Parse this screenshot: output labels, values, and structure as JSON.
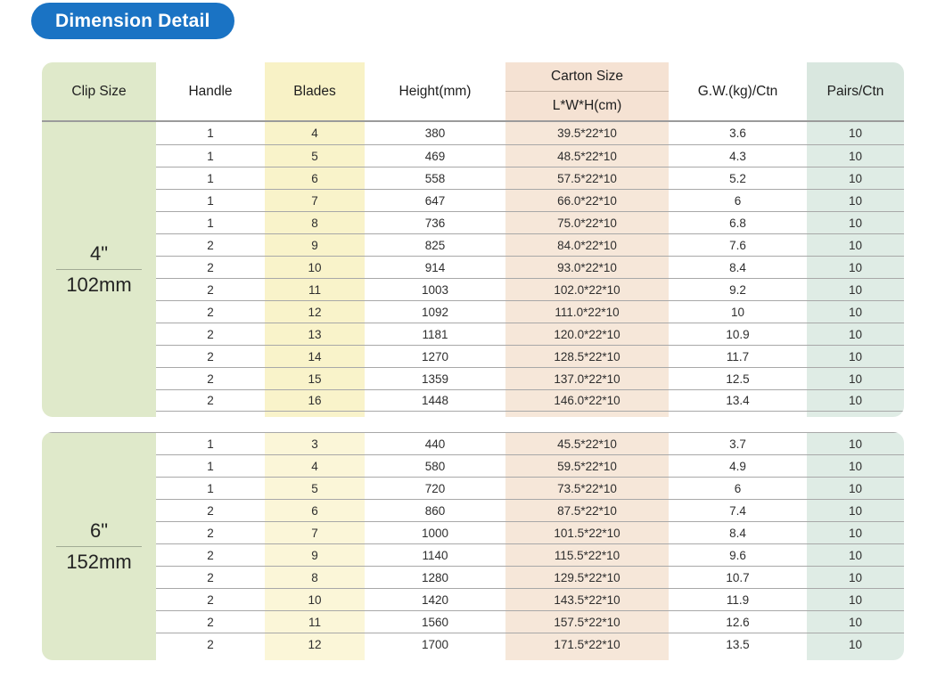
{
  "title": {
    "label": "Dimension Detail"
  },
  "colors": {
    "title_bg": "#1a73c4",
    "clip_band": "#dfe9ca",
    "blades_band_header": "#f8f2c6",
    "blades_band_4": "#f9f3ca",
    "blades_band_6": "#fbf6d8",
    "carton_band_header": "#f5e2d3",
    "carton_band_body": "#f6e7d9",
    "pairs_band_header": "#d9e7df",
    "pairs_band_body": "#dfece5"
  },
  "table": {
    "headers": {
      "clip_size": "Clip Size",
      "handle": "Handle",
      "blades": "Blades",
      "height": "Height(mm)",
      "carton_size": "Carton Size",
      "carton_sub": "L*W*H(cm)",
      "gw": "G.W.(kg)/Ctn",
      "pairs": "Pairs/Ctn"
    },
    "sections": [
      {
        "clip_inch": "4\"",
        "clip_mm": "102mm",
        "rows": [
          {
            "handle": "1",
            "blades": "4",
            "height": "380",
            "carton": "39.5*22*10",
            "gw": "3.6",
            "pairs": "10"
          },
          {
            "handle": "1",
            "blades": "5",
            "height": "469",
            "carton": "48.5*22*10",
            "gw": "4.3",
            "pairs": "10"
          },
          {
            "handle": "1",
            "blades": "6",
            "height": "558",
            "carton": "57.5*22*10",
            "gw": "5.2",
            "pairs": "10"
          },
          {
            "handle": "1",
            "blades": "7",
            "height": "647",
            "carton": "66.0*22*10",
            "gw": "6",
            "pairs": "10"
          },
          {
            "handle": "1",
            "blades": "8",
            "height": "736",
            "carton": "75.0*22*10",
            "gw": "6.8",
            "pairs": "10"
          },
          {
            "handle": "2",
            "blades": "9",
            "height": "825",
            "carton": "84.0*22*10",
            "gw": "7.6",
            "pairs": "10"
          },
          {
            "handle": "2",
            "blades": "10",
            "height": "914",
            "carton": "93.0*22*10",
            "gw": "8.4",
            "pairs": "10"
          },
          {
            "handle": "2",
            "blades": "11",
            "height": "1003",
            "carton": "102.0*22*10",
            "gw": "9.2",
            "pairs": "10"
          },
          {
            "handle": "2",
            "blades": "12",
            "height": "1092",
            "carton": "111.0*22*10",
            "gw": "10",
            "pairs": "10"
          },
          {
            "handle": "2",
            "blades": "13",
            "height": "1181",
            "carton": "120.0*22*10",
            "gw": "10.9",
            "pairs": "10"
          },
          {
            "handle": "2",
            "blades": "14",
            "height": "1270",
            "carton": "128.5*22*10",
            "gw": "11.7",
            "pairs": "10"
          },
          {
            "handle": "2",
            "blades": "15",
            "height": "1359",
            "carton": "137.0*22*10",
            "gw": "12.5",
            "pairs": "10"
          },
          {
            "handle": "2",
            "blades": "16",
            "height": "1448",
            "carton": "146.0*22*10",
            "gw": "13.4",
            "pairs": "10"
          }
        ]
      },
      {
        "clip_inch": "6\"",
        "clip_mm": "152mm",
        "rows": [
          {
            "handle": "1",
            "blades": "3",
            "height": "440",
            "carton": "45.5*22*10",
            "gw": "3.7",
            "pairs": "10"
          },
          {
            "handle": "1",
            "blades": "4",
            "height": "580",
            "carton": "59.5*22*10",
            "gw": "4.9",
            "pairs": "10"
          },
          {
            "handle": "1",
            "blades": "5",
            "height": "720",
            "carton": "73.5*22*10",
            "gw": "6",
            "pairs": "10"
          },
          {
            "handle": "2",
            "blades": "6",
            "height": "860",
            "carton": "87.5*22*10",
            "gw": "7.4",
            "pairs": "10"
          },
          {
            "handle": "2",
            "blades": "7",
            "height": "1000",
            "carton": "101.5*22*10",
            "gw": "8.4",
            "pairs": "10"
          },
          {
            "handle": "2",
            "blades": "9",
            "height": "1140",
            "carton": "115.5*22*10",
            "gw": "9.6",
            "pairs": "10"
          },
          {
            "handle": "2",
            "blades": "8",
            "height": "1280",
            "carton": "129.5*22*10",
            "gw": "10.7",
            "pairs": "10"
          },
          {
            "handle": "2",
            "blades": "10",
            "height": "1420",
            "carton": "143.5*22*10",
            "gw": "11.9",
            "pairs": "10"
          },
          {
            "handle": "2",
            "blades": "11",
            "height": "1560",
            "carton": "157.5*22*10",
            "gw": "12.6",
            "pairs": "10"
          },
          {
            "handle": "2",
            "blades": "12",
            "height": "1700",
            "carton": "171.5*22*10",
            "gw": "13.5",
            "pairs": "10"
          }
        ]
      }
    ]
  }
}
